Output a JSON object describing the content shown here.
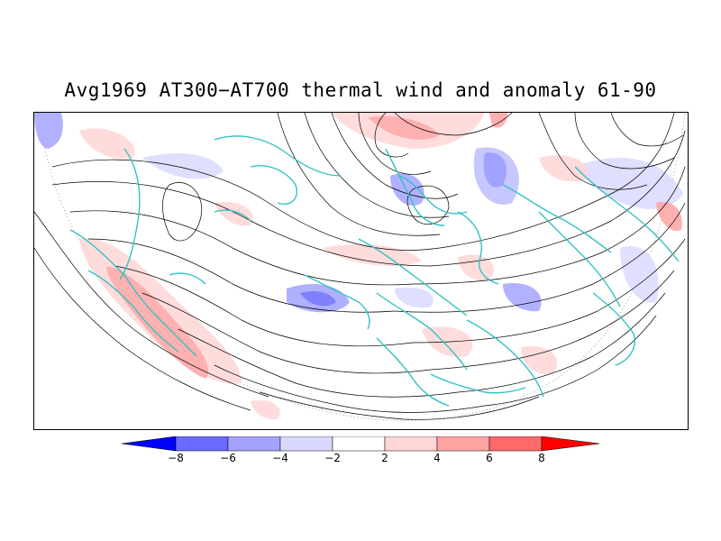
{
  "title": "Avg1969 AT300-AT700 thermal wind and anomaly 61-90",
  "colors": {
    "coastline": "#33c2c2",
    "streamline": "#000000",
    "frame": "#000000"
  },
  "colorbar": {
    "levels": [
      "-8",
      "-6",
      "-4",
      "-2",
      "2",
      "4",
      "6",
      "8"
    ],
    "fills": [
      "#0000ff",
      "#6a6aff",
      "#a3a3ff",
      "#d9d9ff",
      "#ffffff",
      "#ffd6d6",
      "#ffa3a3",
      "#ff6a6a",
      "#ff0000"
    ]
  }
}
